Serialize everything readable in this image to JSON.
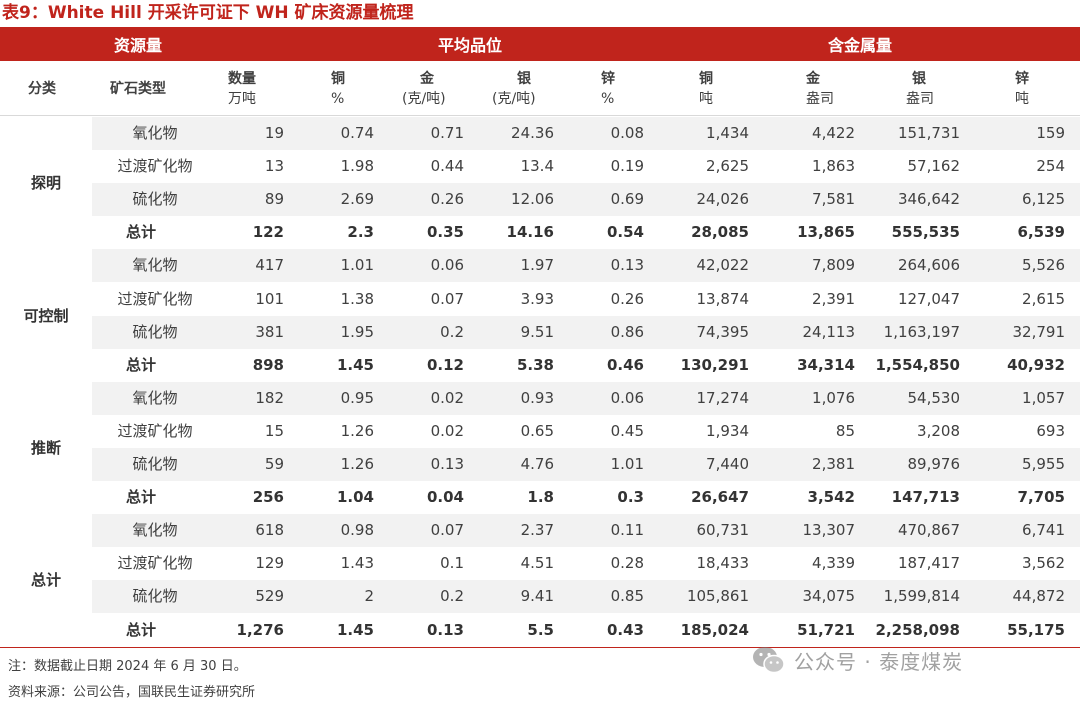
{
  "title": "表9：White Hill 开采许可证下 WH 矿床资源量梳理",
  "header_groups": {
    "resource": "资源量",
    "grade": "平均品位",
    "metal": "含金属量"
  },
  "subheaders": {
    "category": "分类",
    "ore_type": "矿石类型",
    "qty": {
      "name": "数量",
      "unit": "万吨"
    },
    "cu_grade": {
      "name": "铜",
      "unit": "%"
    },
    "au_grade": {
      "name": "金",
      "unit": "(克/吨)"
    },
    "ag_grade": {
      "name": "银",
      "unit": "(克/吨)"
    },
    "zn_grade": {
      "name": "锌",
      "unit": "%"
    },
    "cu_metal": {
      "name": "铜",
      "unit": "吨"
    },
    "au_metal": {
      "name": "金",
      "unit": "盎司"
    },
    "ag_metal": {
      "name": "银",
      "unit": "盎司"
    },
    "zn_metal": {
      "name": "锌",
      "unit": "吨"
    }
  },
  "groups": [
    {
      "label": "探明",
      "rows": [
        [
          "氧化物",
          "19",
          "0.74",
          "0.71",
          "24.36",
          "0.08",
          "1,434",
          "4,422",
          "151,731",
          "159"
        ],
        [
          "过渡矿化物",
          "13",
          "1.98",
          "0.44",
          "13.4",
          "0.19",
          "2,625",
          "1,863",
          "57,162",
          "254"
        ],
        [
          "硫化物",
          "89",
          "2.69",
          "0.26",
          "12.06",
          "0.69",
          "24,026",
          "7,581",
          "346,642",
          "6,125"
        ],
        [
          "总计",
          "122",
          "2.3",
          "0.35",
          "14.16",
          "0.54",
          "28,085",
          "13,865",
          "555,535",
          "6,539"
        ]
      ]
    },
    {
      "label": "可控制",
      "rows": [
        [
          "氧化物",
          "417",
          "1.01",
          "0.06",
          "1.97",
          "0.13",
          "42,022",
          "7,809",
          "264,606",
          "5,526"
        ],
        [
          "过渡矿化物",
          "101",
          "1.38",
          "0.07",
          "3.93",
          "0.26",
          "13,874",
          "2,391",
          "127,047",
          "2,615"
        ],
        [
          "硫化物",
          "381",
          "1.95",
          "0.2",
          "9.51",
          "0.86",
          "74,395",
          "24,113",
          "1,163,197",
          "32,791"
        ],
        [
          "总计",
          "898",
          "1.45",
          "0.12",
          "5.38",
          "0.46",
          "130,291",
          "34,314",
          "1,554,850",
          "40,932"
        ]
      ]
    },
    {
      "label": "推断",
      "rows": [
        [
          "氧化物",
          "182",
          "0.95",
          "0.02",
          "0.93",
          "0.06",
          "17,274",
          "1,076",
          "54,530",
          "1,057"
        ],
        [
          "过渡矿化物",
          "15",
          "1.26",
          "0.02",
          "0.65",
          "0.45",
          "1,934",
          "85",
          "3,208",
          "693"
        ],
        [
          "硫化物",
          "59",
          "1.26",
          "0.13",
          "4.76",
          "1.01",
          "7,440",
          "2,381",
          "89,976",
          "5,955"
        ],
        [
          "总计",
          "256",
          "1.04",
          "0.04",
          "1.8",
          "0.3",
          "26,647",
          "3,542",
          "147,713",
          "7,705"
        ]
      ]
    },
    {
      "label": "总计",
      "rows": [
        [
          "氧化物",
          "618",
          "0.98",
          "0.07",
          "2.37",
          "0.11",
          "60,731",
          "13,307",
          "470,867",
          "6,741"
        ],
        [
          "过渡矿化物",
          "129",
          "1.43",
          "0.1",
          "4.51",
          "0.28",
          "18,433",
          "4,339",
          "187,417",
          "3,562"
        ],
        [
          "硫化物",
          "529",
          "2",
          "0.2",
          "9.41",
          "0.85",
          "105,861",
          "34,075",
          "1,599,814",
          "44,872"
        ],
        [
          "总计",
          "1,276",
          "1.45",
          "0.13",
          "5.5",
          "0.43",
          "185,024",
          "51,721",
          "2,258,098",
          "55,175"
        ]
      ]
    }
  ],
  "notes": {
    "note": "注：数据截止日期 2024 年 6 月 30 日。",
    "source": "资料来源：公司公告，国联民生证券研究所"
  },
  "watermark": {
    "text": "公众号 · 泰度煤炭",
    "icon": "wechat-icon"
  },
  "colors": {
    "accent_red": "#c0241c",
    "row_shade": "#f2f2f2"
  }
}
